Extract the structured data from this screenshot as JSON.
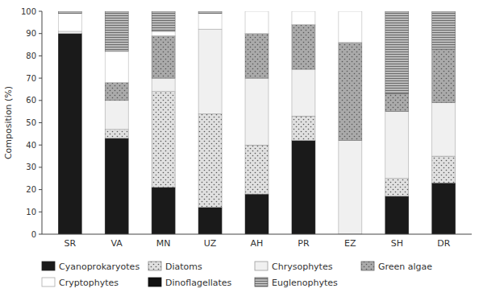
{
  "chart_data": {
    "type": "bar",
    "stacked": true,
    "categories": [
      "SR",
      "VA",
      "MN",
      "UZ",
      "AH",
      "PR",
      "EZ",
      "SH",
      "DR"
    ],
    "series": [
      {
        "name": "Cyanoprokaryotes",
        "color": "#1a1a1a",
        "values": [
          90,
          43,
          21,
          12,
          18,
          42,
          0,
          17,
          23
        ]
      },
      {
        "name": "Diatoms",
        "color": "#e0e0e0",
        "values": [
          0,
          4,
          43,
          42,
          22,
          11,
          0,
          8,
          12
        ]
      },
      {
        "name": "Chrysophytes",
        "color": "#f0f0f0",
        "values": [
          1,
          13,
          6,
          38,
          30,
          21,
          42,
          30,
          24
        ]
      },
      {
        "name": "Green algae",
        "color": "#aaaaaa",
        "values": [
          0,
          8,
          19,
          0,
          20,
          20,
          44,
          8,
          24
        ]
      },
      {
        "name": "Cryptophytes",
        "color": "#ffffff",
        "values": [
          8,
          14,
          2,
          7,
          10,
          6,
          14,
          0,
          0
        ]
      },
      {
        "name": "Dinoflagellates",
        "color": "#111111",
        "values": [
          0,
          0,
          0,
          0,
          0,
          0,
          0,
          0,
          0
        ]
      },
      {
        "name": "Euglenophytes",
        "color": "#bbbbbb",
        "values": [
          1,
          18,
          9,
          1,
          0,
          0,
          0,
          37,
          17
        ]
      }
    ],
    "ylabel": "Composition (%)",
    "ylim": [
      0,
      100
    ],
    "yticks": [
      0,
      10,
      20,
      30,
      40,
      50,
      60,
      70,
      80,
      90,
      100
    ],
    "grid": false,
    "legend": "bottom"
  }
}
